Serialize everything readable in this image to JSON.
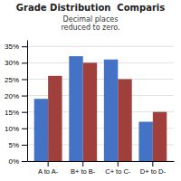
{
  "chart_data": {
    "type": "bar",
    "title": "Grade Distribution  Comparis",
    "categories": [
      "A to A-",
      "B+ to B-",
      "C+ to C-",
      "D+ to D-"
    ],
    "series": [
      {
        "color": "#4472C4",
        "values": [
          19,
          32,
          31,
          12
        ]
      },
      {
        "color": "#A0403D",
        "values": [
          26,
          30,
          25,
          15
        ]
      }
    ],
    "ylim": [
      0,
      37
    ],
    "yticks": [
      {
        "value": 0,
        "label": "0%"
      },
      {
        "value": 5,
        "label": "5%"
      },
      {
        "value": 10,
        "label": "10%"
      },
      {
        "value": 15,
        "label": "15%"
      },
      {
        "value": 20,
        "label": "20%"
      },
      {
        "value": 25,
        "label": "25%"
      },
      {
        "value": 30,
        "label": "30%"
      },
      {
        "value": 35,
        "label": "35%"
      }
    ],
    "grid": true,
    "annotations": [
      "Decimal places\nreduced to zero."
    ]
  }
}
